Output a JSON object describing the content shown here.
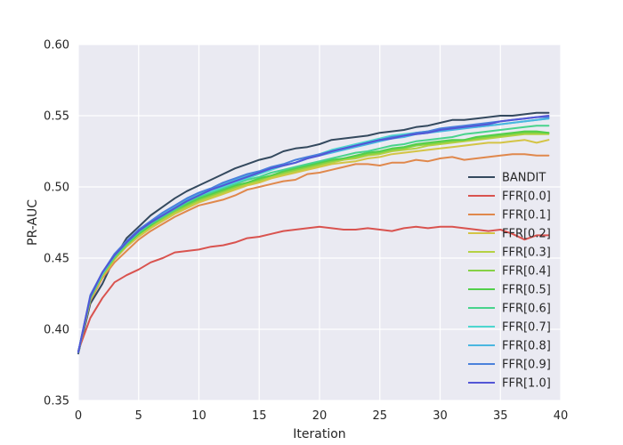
{
  "chart_data": {
    "type": "line",
    "title": "",
    "xlabel": "Iteration",
    "ylabel": "PR-AUC",
    "xlim": [
      0,
      40
    ],
    "ylim": [
      0.35,
      0.6
    ],
    "xticks": [
      0,
      5,
      10,
      15,
      20,
      25,
      30,
      35,
      40
    ],
    "yticks": [
      0.35,
      0.4,
      0.45,
      0.5,
      0.55,
      0.6
    ],
    "xtick_labels": [
      "0",
      "5",
      "10",
      "15",
      "20",
      "25",
      "30",
      "35",
      "40"
    ],
    "ytick_labels": [
      "0.35",
      "0.40",
      "0.45",
      "0.50",
      "0.55",
      "0.60"
    ],
    "grid": true,
    "legend_position": "lower-right",
    "x": [
      0,
      1,
      2,
      3,
      4,
      5,
      6,
      7,
      8,
      9,
      10,
      11,
      12,
      13,
      14,
      15,
      16,
      17,
      18,
      19,
      20,
      21,
      22,
      23,
      24,
      25,
      26,
      27,
      28,
      29,
      30,
      31,
      32,
      33,
      34,
      35,
      36,
      37,
      38,
      39
    ],
    "series": [
      {
        "name": "BANDIT",
        "color": "#34495e",
        "values": [
          0.383,
          0.418,
          0.432,
          0.45,
          0.464,
          0.472,
          0.48,
          0.486,
          0.492,
          0.497,
          0.501,
          0.505,
          0.509,
          0.513,
          0.516,
          0.519,
          0.521,
          0.525,
          0.527,
          0.528,
          0.53,
          0.533,
          0.534,
          0.535,
          0.536,
          0.538,
          0.539,
          0.54,
          0.542,
          0.543,
          0.545,
          0.547,
          0.547,
          0.548,
          0.549,
          0.55,
          0.55,
          0.551,
          0.552,
          0.552
        ]
      },
      {
        "name": "FFR[0.0]",
        "color": "#d9534f",
        "values": [
          0.385,
          0.408,
          0.422,
          0.433,
          0.438,
          0.442,
          0.447,
          0.45,
          0.454,
          0.455,
          0.456,
          0.458,
          0.459,
          0.461,
          0.464,
          0.465,
          0.467,
          0.469,
          0.47,
          0.471,
          0.472,
          0.471,
          0.47,
          0.47,
          0.471,
          0.47,
          0.469,
          0.471,
          0.472,
          0.471,
          0.472,
          0.472,
          0.471,
          0.47,
          0.469,
          0.47,
          0.467,
          0.463,
          0.466,
          0.466
        ]
      },
      {
        "name": "FFR[0.1]",
        "color": "#e0884c",
        "values": [
          0.384,
          0.42,
          0.436,
          0.447,
          0.455,
          0.463,
          0.469,
          0.474,
          0.479,
          0.483,
          0.487,
          0.489,
          0.491,
          0.494,
          0.498,
          0.5,
          0.502,
          0.504,
          0.505,
          0.509,
          0.51,
          0.512,
          0.514,
          0.516,
          0.516,
          0.515,
          0.517,
          0.517,
          0.519,
          0.518,
          0.52,
          0.521,
          0.519,
          0.52,
          0.521,
          0.522,
          0.523,
          0.523,
          0.522,
          0.522
        ]
      },
      {
        "name": "FFR[0.2]",
        "color": "#d4c445",
        "values": [
          0.384,
          0.421,
          0.437,
          0.449,
          0.458,
          0.465,
          0.471,
          0.476,
          0.481,
          0.485,
          0.489,
          0.492,
          0.495,
          0.498,
          0.501,
          0.503,
          0.506,
          0.508,
          0.51,
          0.512,
          0.514,
          0.516,
          0.517,
          0.518,
          0.52,
          0.521,
          0.523,
          0.524,
          0.525,
          0.526,
          0.527,
          0.528,
          0.529,
          0.53,
          0.531,
          0.531,
          0.532,
          0.533,
          0.531,
          0.533
        ]
      },
      {
        "name": "FFR[0.3]",
        "color": "#b5d144",
        "values": [
          0.384,
          0.421,
          0.438,
          0.45,
          0.459,
          0.466,
          0.472,
          0.477,
          0.482,
          0.486,
          0.49,
          0.493,
          0.496,
          0.499,
          0.502,
          0.504,
          0.507,
          0.509,
          0.511,
          0.513,
          0.515,
          0.517,
          0.519,
          0.52,
          0.522,
          0.523,
          0.525,
          0.526,
          0.527,
          0.529,
          0.53,
          0.531,
          0.532,
          0.533,
          0.534,
          0.535,
          0.536,
          0.537,
          0.537,
          0.537
        ]
      },
      {
        "name": "FFR[0.4]",
        "color": "#86d145",
        "values": [
          0.384,
          0.422,
          0.438,
          0.45,
          0.459,
          0.467,
          0.473,
          0.478,
          0.483,
          0.487,
          0.491,
          0.494,
          0.497,
          0.5,
          0.503,
          0.505,
          0.508,
          0.51,
          0.512,
          0.514,
          0.516,
          0.518,
          0.52,
          0.521,
          0.523,
          0.524,
          0.526,
          0.527,
          0.529,
          0.53,
          0.531,
          0.532,
          0.533,
          0.534,
          0.535,
          0.536,
          0.537,
          0.538,
          0.538,
          0.538
        ]
      },
      {
        "name": "FFR[0.5]",
        "color": "#52cf4a",
        "values": [
          0.384,
          0.422,
          0.439,
          0.451,
          0.46,
          0.467,
          0.473,
          0.479,
          0.484,
          0.488,
          0.492,
          0.495,
          0.498,
          0.501,
          0.503,
          0.506,
          0.508,
          0.511,
          0.513,
          0.515,
          0.517,
          0.519,
          0.52,
          0.522,
          0.524,
          0.525,
          0.527,
          0.528,
          0.53,
          0.531,
          0.532,
          0.533,
          0.533,
          0.535,
          0.536,
          0.537,
          0.538,
          0.539,
          0.539,
          0.538
        ]
      },
      {
        "name": "FFR[0.6]",
        "color": "#48d38c",
        "values": [
          0.384,
          0.422,
          0.439,
          0.451,
          0.46,
          0.468,
          0.474,
          0.479,
          0.484,
          0.489,
          0.493,
          0.496,
          0.499,
          0.502,
          0.505,
          0.507,
          0.51,
          0.512,
          0.514,
          0.516,
          0.518,
          0.52,
          0.522,
          0.524,
          0.525,
          0.527,
          0.529,
          0.53,
          0.532,
          0.533,
          0.534,
          0.535,
          0.537,
          0.538,
          0.539,
          0.54,
          0.541,
          0.542,
          0.543,
          0.543
        ]
      },
      {
        "name": "FFR[0.7]",
        "color": "#4dd6cf",
        "values": [
          0.384,
          0.423,
          0.439,
          0.452,
          0.461,
          0.469,
          0.475,
          0.48,
          0.485,
          0.49,
          0.494,
          0.497,
          0.5,
          0.503,
          0.506,
          0.509,
          0.512,
          0.515,
          0.517,
          0.52,
          0.523,
          0.526,
          0.528,
          0.53,
          0.532,
          0.534,
          0.536,
          0.537,
          0.538,
          0.539,
          0.54,
          0.541,
          0.542,
          0.542,
          0.543,
          0.544,
          0.545,
          0.546,
          0.547,
          0.548
        ]
      },
      {
        "name": "FFR[0.8]",
        "color": "#4ab6e0",
        "values": [
          0.384,
          0.423,
          0.44,
          0.452,
          0.461,
          0.469,
          0.475,
          0.481,
          0.486,
          0.491,
          0.495,
          0.498,
          0.502,
          0.505,
          0.508,
          0.51,
          0.513,
          0.515,
          0.517,
          0.52,
          0.522,
          0.524,
          0.526,
          0.528,
          0.53,
          0.532,
          0.534,
          0.535,
          0.537,
          0.538,
          0.539,
          0.54,
          0.541,
          0.542,
          0.543,
          0.544,
          0.545,
          0.546,
          0.547,
          0.548
        ]
      },
      {
        "name": "FFR[0.9]",
        "color": "#4b81db",
        "values": [
          0.384,
          0.424,
          0.44,
          0.453,
          0.462,
          0.47,
          0.476,
          0.482,
          0.487,
          0.492,
          0.496,
          0.499,
          0.503,
          0.506,
          0.509,
          0.511,
          0.514,
          0.516,
          0.519,
          0.521,
          0.523,
          0.525,
          0.527,
          0.529,
          0.531,
          0.533,
          0.535,
          0.536,
          0.538,
          0.539,
          0.541,
          0.542,
          0.543,
          0.544,
          0.545,
          0.546,
          0.547,
          0.548,
          0.549,
          0.549
        ]
      },
      {
        "name": "FFR[1.0]",
        "color": "#5356d6",
        "values": [
          0.384,
          0.423,
          0.44,
          0.452,
          0.461,
          0.469,
          0.475,
          0.48,
          0.485,
          0.49,
          0.494,
          0.498,
          0.501,
          0.504,
          0.507,
          0.51,
          0.513,
          0.515,
          0.517,
          0.52,
          0.522,
          0.525,
          0.527,
          0.529,
          0.531,
          0.533,
          0.534,
          0.536,
          0.537,
          0.538,
          0.54,
          0.541,
          0.542,
          0.543,
          0.544,
          0.546,
          0.547,
          0.548,
          0.549,
          0.55
        ]
      }
    ]
  }
}
